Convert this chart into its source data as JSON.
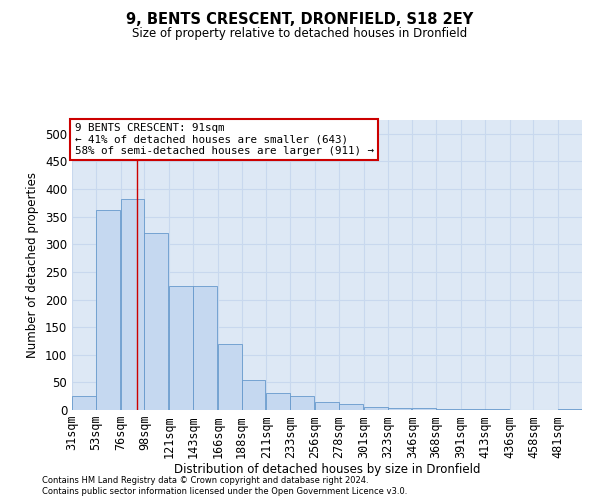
{
  "title": "9, BENTS CRESCENT, DRONFIELD, S18 2EY",
  "subtitle": "Size of property relative to detached houses in Dronfield",
  "xlabel": "Distribution of detached houses by size in Dronfield",
  "ylabel": "Number of detached properties",
  "footnote1": "Contains HM Land Registry data © Crown copyright and database right 2024.",
  "footnote2": "Contains public sector information licensed under the Open Government Licence v3.0.",
  "bar_color": "#c5d8f0",
  "bar_edge_color": "#6699cc",
  "grid_color": "#c8d8ee",
  "bg_color": "#dde8f5",
  "annotation_text": "9 BENTS CRESCENT: 91sqm\n← 41% of detached houses are smaller (643)\n58% of semi-detached houses are larger (911) →",
  "annotation_box_color": "#ffffff",
  "annotation_border_color": "#cc0000",
  "vline_color": "#cc0000",
  "vline_x": 91,
  "categories": [
    "31sqm",
    "53sqm",
    "76sqm",
    "98sqm",
    "121sqm",
    "143sqm",
    "166sqm",
    "188sqm",
    "211sqm",
    "233sqm",
    "256sqm",
    "278sqm",
    "301sqm",
    "323sqm",
    "346sqm",
    "368sqm",
    "391sqm",
    "413sqm",
    "436sqm",
    "458sqm",
    "481sqm"
  ],
  "bin_starts": [
    31,
    53,
    76,
    98,
    121,
    143,
    166,
    188,
    211,
    233,
    256,
    278,
    301,
    323,
    346,
    368,
    391,
    413,
    436,
    458,
    481
  ],
  "bin_width": 22,
  "values": [
    25,
    362,
    382,
    320,
    225,
    225,
    120,
    55,
    30,
    25,
    15,
    10,
    5,
    4,
    3,
    2,
    1,
    1,
    0,
    0,
    2
  ],
  "ylim": [
    0,
    525
  ],
  "yticks": [
    0,
    50,
    100,
    150,
    200,
    250,
    300,
    350,
    400,
    450,
    500
  ]
}
